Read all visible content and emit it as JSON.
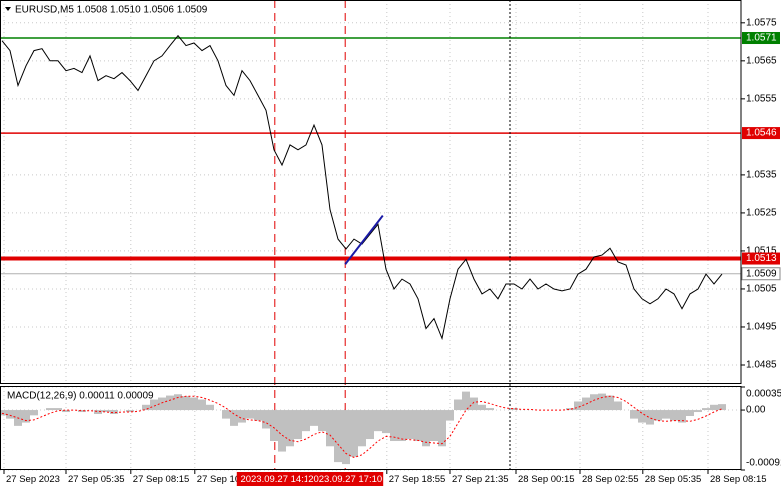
{
  "chart_data": [
    {
      "type": "line",
      "title": "EURUSD,M5  1.0508 1.0510 1.0506 1.0509",
      "xlim": [
        -0.25,
        92.375
      ],
      "ylim": [
        1.048,
        1.0581
      ],
      "yticks": [
        1.0575,
        1.0565,
        1.0555,
        1.0535,
        1.0525,
        1.0515,
        1.0505,
        1.0495,
        1.0485
      ],
      "grid": true,
      "color": "#000000",
      "values": [
        1.05703,
        1.05677,
        1.05585,
        1.05637,
        1.05677,
        1.05682,
        1.0565,
        1.0565,
        1.05624,
        1.0563,
        1.05619,
        1.05663,
        1.05598,
        1.05611,
        1.05603,
        1.05619,
        1.05598,
        1.05572,
        1.05611,
        1.0565,
        1.05663,
        1.0569,
        1.05716,
        1.0569,
        1.05697,
        1.05677,
        1.0569,
        1.0565,
        1.05585,
        1.05559,
        1.05624,
        1.05598,
        1.05559,
        1.0552,
        1.05416,
        1.05376,
        1.05429,
        1.05416,
        1.05429,
        1.05481,
        1.05429,
        1.05259,
        1.05181,
        1.05155,
        1.05181,
        1.05168,
        1.05194,
        1.0522,
        1.05102,
        1.0505,
        1.05076,
        1.05063,
        1.05024,
        1.04946,
        1.04972,
        1.0492,
        1.05024,
        1.05102,
        1.05128,
        1.05076,
        1.05037,
        1.0505,
        1.05024,
        1.05063,
        1.05063,
        1.0505,
        1.05076,
        1.0505,
        1.05063,
        1.0505,
        1.05045,
        1.0505,
        1.05089,
        1.05102,
        1.05134,
        1.05139,
        1.05157,
        1.05121,
        1.05113,
        1.0505,
        1.05024,
        1.05011,
        1.05024,
        1.0505,
        1.05037,
        1.04998,
        1.05037,
        1.0505,
        1.05089,
        1.05063,
        1.05089
      ],
      "levels": [
        {
          "value": 1.0571,
          "color": "#008000",
          "line_width": 1.5
        },
        {
          "value": 1.0546,
          "color": "#e00000",
          "line_width": 1.5
        },
        {
          "value": 1.0513,
          "color": "#e00000",
          "line_width": 4
        }
      ],
      "last_price": 1.0509,
      "markers": [
        {
          "x": 34.1,
          "label": "2023.09.27 14:1",
          "color": "#e00000",
          "dash": "dashed"
        },
        {
          "x": 42.9,
          "label": "2023.09.27 17:10",
          "color": "#e00000",
          "dash": "dashed"
        },
        {
          "x": 63.5,
          "color": "#000000",
          "dash": "dotted"
        }
      ],
      "trendline": {
        "x": [
          42.9,
          47.6
        ],
        "y": [
          1.05115,
          1.05243
        ],
        "color": "#1a1aa6"
      }
    },
    {
      "type": "macd",
      "title": "MACD(12,26,9) 0.00011 0.00009",
      "xlim": [
        -0.25,
        92.375
      ],
      "ylim": [
        -0.00091,
        0.00035
      ],
      "yticks": [
        0.00035,
        {
          "value": 0,
          "label": "0.00"
        },
        -0.00091
      ],
      "grid": true,
      "xticks": [
        {
          "value": 0.25,
          "label": "27 Sep 2023"
        },
        {
          "value": 8,
          "label": "27 Sep 05:35"
        },
        {
          "value": 16.1,
          "label": "27 Sep 08:15"
        },
        {
          "value": 24.1,
          "label": "27 Sep 10:55"
        },
        {
          "value": 48.1,
          "label": "27 Sep 18:55"
        },
        {
          "value": 56,
          "label": "27 Sep 21:35"
        },
        {
          "value": 64.25,
          "label": "28 Sep 00:15"
        },
        {
          "value": 72.25,
          "label": "28 Sep 02:55"
        },
        {
          "value": 80.1,
          "label": "28 Sep 05:35"
        },
        {
          "value": 88.25,
          "label": "28 Sep 08:15"
        }
      ],
      "series": [
        {
          "color": "#c0c0c0",
          "values": [
            -8e-05,
            -0.00013,
            -0.00024,
            -0.00019,
            -8e-05,
            0,
            3e-05,
            3e-05,
            -3e-05,
            0,
            -3e-05,
            0,
            -6e-05,
            -3e-05,
            -6e-05,
            0,
            -3e-05,
            0,
            8e-05,
            0.00016,
            0.00019,
            0.00022,
            0.00024,
            0.00021,
            0.00019,
            0.00016,
            8e-05,
            0,
            -0.00013,
            -0.00024,
            -0.00019,
            -0.00013,
            -0.00016,
            -0.00028,
            -0.00047,
            -0.00063,
            -0.00055,
            -0.00044,
            -0.00032,
            -0.00024,
            -0.00032,
            -0.00055,
            -0.00079,
            -0.00082,
            -0.00071,
            -0.00055,
            -0.00044,
            -0.00032,
            -0.00035,
            -0.00047,
            -0.00047,
            -0.00044,
            -0.00047,
            -0.00055,
            -0.00047,
            -0.00055,
            -0.00016,
            0.00016,
            0.00028,
            0.00019,
            8e-05,
            3e-05,
            0,
            0,
            3e-05,
            0,
            0,
            0,
            0,
            0,
            0,
            3e-05,
            0.00013,
            0.00019,
            0.00024,
            0.00025,
            0.00022,
            0.00013,
            0,
            -0.00013,
            -0.00019,
            -0.00022,
            -0.00016,
            -0.00013,
            -0.00016,
            -0.00019,
            -9e-05,
            -3e-05,
            3e-05,
            8e-05,
            9e-05
          ]
        },
        {
          "color": "#ff0000",
          "values": [
            -5e-05,
            -8e-05,
            -0.00012,
            -0.00016,
            -0.00015,
            -0.0001,
            -5e-05,
            -1e-05,
            0,
            0,
            -1e-05,
            -1e-05,
            -2e-05,
            -3e-05,
            -4e-05,
            -3e-05,
            -3e-05,
            -2e-05,
            1e-05,
            6e-05,
            0.00011,
            0.00015,
            0.00019,
            0.00021,
            0.00021,
            0.00019,
            0.00015,
            0.0001,
            3e-05,
            -6e-05,
            -0.00013,
            -0.00015,
            -0.00016,
            -0.00019,
            -0.00027,
            -0.00038,
            -0.00046,
            -0.00048,
            -0.00044,
            -0.00037,
            -0.00033,
            -0.00038,
            -0.00052,
            -0.00066,
            -0.00072,
            -0.00068,
            -0.00058,
            -0.00047,
            -0.0004,
            -0.00041,
            -0.00044,
            -0.00045,
            -0.00046,
            -0.00049,
            -0.0005,
            -0.00051,
            -0.0004,
            -0.0002,
            0,
            0.00012,
            0.00013,
            0.0001,
            6e-05,
            3e-05,
            2e-05,
            1e-05,
            1e-05,
            0,
            0,
            0,
            0,
            1e-05,
            4e-05,
            9e-05,
            0.00015,
            0.00019,
            0.00021,
            0.00019,
            0.00013,
            4e-05,
            -5e-05,
            -0.00012,
            -0.00016,
            -0.00017,
            -0.00016,
            -0.00016,
            -0.00017,
            -0.00014,
            -9e-05,
            -3e-05,
            2e-05
          ]
        }
      ]
    }
  ]
}
